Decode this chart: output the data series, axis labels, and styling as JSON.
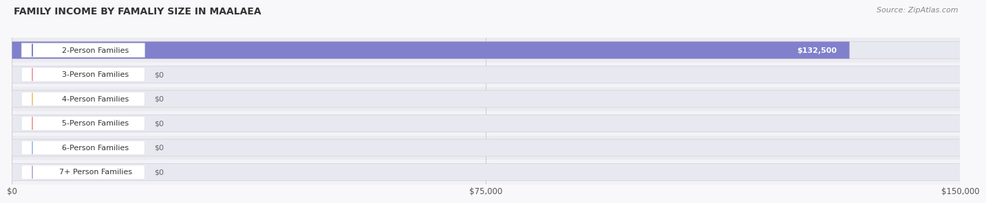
{
  "title": "FAMILY INCOME BY FAMALIY SIZE IN MAALAEA",
  "source": "Source: ZipAtlas.com",
  "categories": [
    "2-Person Families",
    "3-Person Families",
    "4-Person Families",
    "5-Person Families",
    "6-Person Families",
    "7+ Person Families"
  ],
  "values": [
    132500,
    0,
    0,
    0,
    0,
    0
  ],
  "bar_colors": [
    "#8080cc",
    "#f4a0b0",
    "#f5c880",
    "#f4a0a0",
    "#a8c4e8",
    "#c4b0d8"
  ],
  "label_icon_colors": [
    "#8080cc",
    "#f4a0b0",
    "#f5c880",
    "#f4a0a0",
    "#a8c4e8",
    "#c4b0d8"
  ],
  "bar_value_labels": [
    "$132,500",
    "$0",
    "$0",
    "$0",
    "$0",
    "$0"
  ],
  "xlim": [
    0,
    150000
  ],
  "xtick_values": [
    0,
    75000,
    150000
  ],
  "xtick_labels": [
    "$0",
    "$75,000",
    "$150,000"
  ],
  "background_color": "#f8f8fa",
  "bar_bg_color": "#e8e8f0",
  "row_colors": [
    "#ebebf0",
    "#f2f2f7"
  ],
  "title_fontsize": 10,
  "source_fontsize": 8,
  "label_fontsize": 8,
  "value_fontsize": 8
}
